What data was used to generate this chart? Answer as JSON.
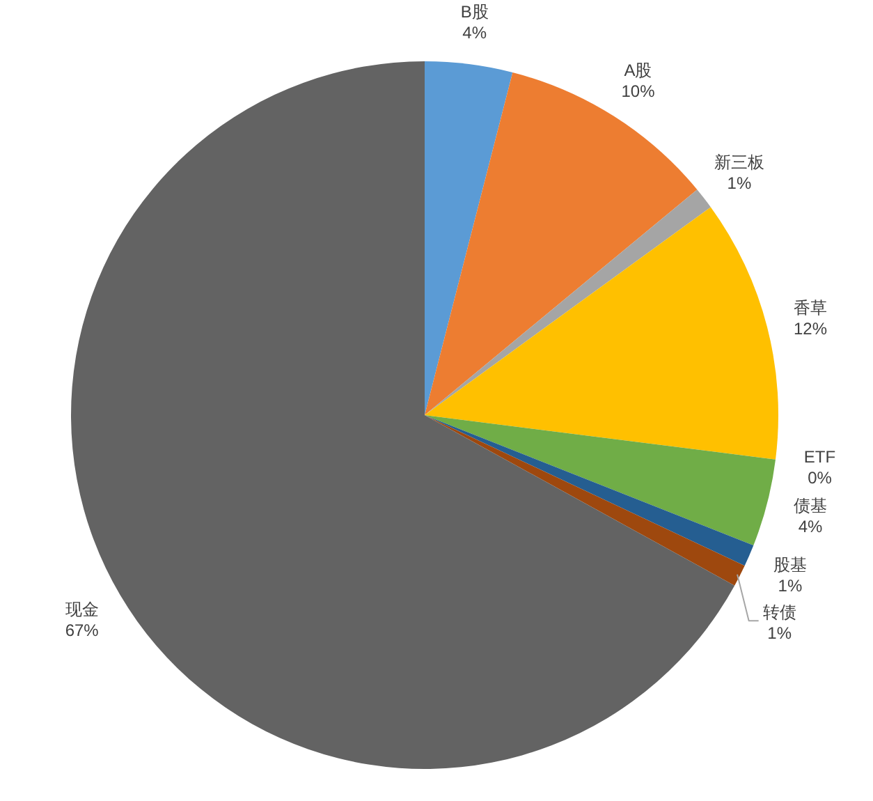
{
  "chart_data": {
    "type": "pie",
    "categories": [
      "B股",
      "A股",
      "新三板",
      "香草",
      "ETF",
      "债基",
      "股基",
      "转债",
      "现金"
    ],
    "values": [
      4,
      10,
      1,
      12,
      0,
      4,
      1,
      1,
      67
    ],
    "colors": [
      "#5b9bd5",
      "#ed7d31",
      "#a5a5a5",
      "#ffc000",
      null,
      "#70ad47",
      "#255e91",
      "#9e480e",
      "#636363"
    ],
    "value_labels": [
      "4%",
      "10%",
      "1%",
      "12%",
      "0%",
      "4%",
      "1%",
      "1%",
      "67%"
    ]
  }
}
